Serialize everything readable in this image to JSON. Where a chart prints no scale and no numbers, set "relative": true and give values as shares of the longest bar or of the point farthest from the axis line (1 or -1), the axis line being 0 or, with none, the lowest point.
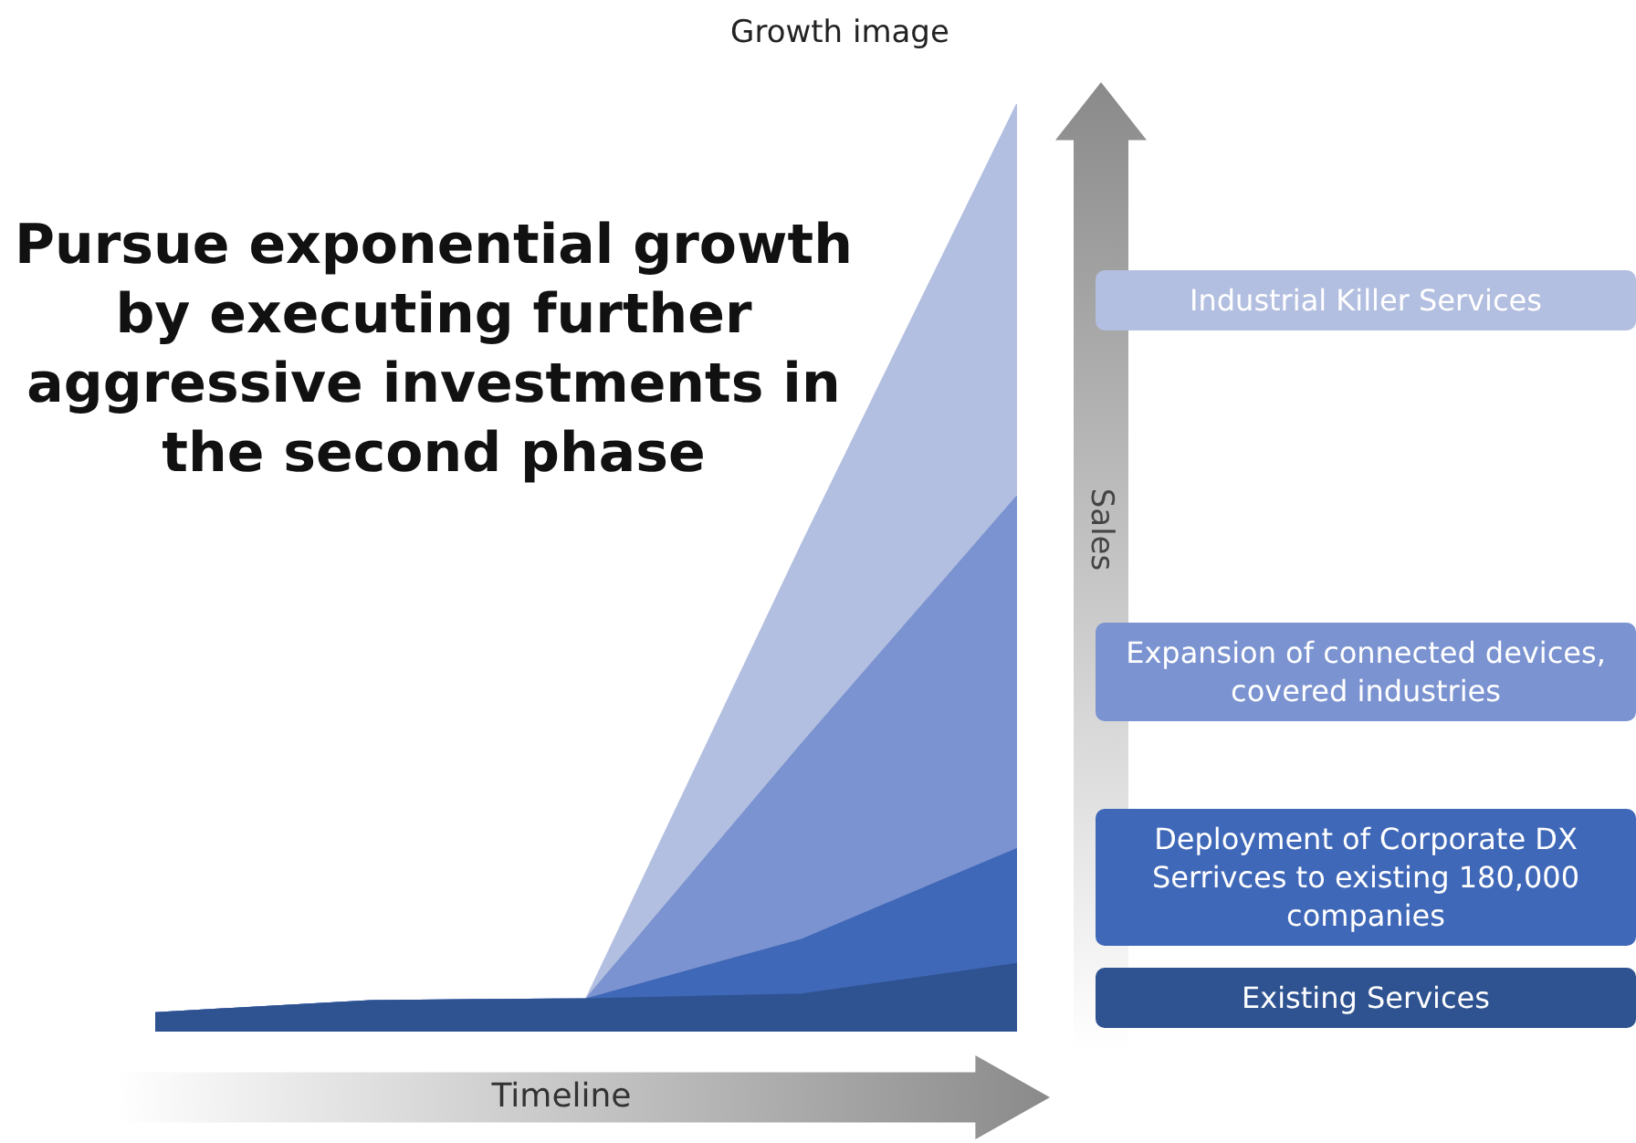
{
  "chart_data": {
    "type": "area",
    "title": "Growth image",
    "xlabel": "Timeline",
    "ylabel": "Sales",
    "relative": true,
    "stacked": true,
    "marker": "none",
    "legend": "right",
    "annotations": [
      "Pursue exponential growth by executing further aggressive investments in the second phase"
    ],
    "categories": [
      null,
      null,
      null,
      null,
      null
    ],
    "series": [
      {
        "name": "Existing Services",
        "color": "#2f5391",
        "values": [
          0.02,
          0.033,
          0.035,
          0.04,
          0.073
        ]
      },
      {
        "name": "Deployment of Corporate DX Serrivces to existing 180,000 companies",
        "color": "#4068b8",
        "values": [
          0,
          0,
          0,
          0.059,
          0.124
        ]
      },
      {
        "name": "Expansion of connected devices, covered industries",
        "color": "#7b93d0",
        "values": [
          0,
          0,
          0,
          0.211,
          0.38
        ]
      },
      {
        "name": "Industrial Killer Services",
        "color": "#b3bfe0",
        "values": [
          0,
          0,
          0,
          0.215,
          0.423
        ]
      }
    ]
  }
}
